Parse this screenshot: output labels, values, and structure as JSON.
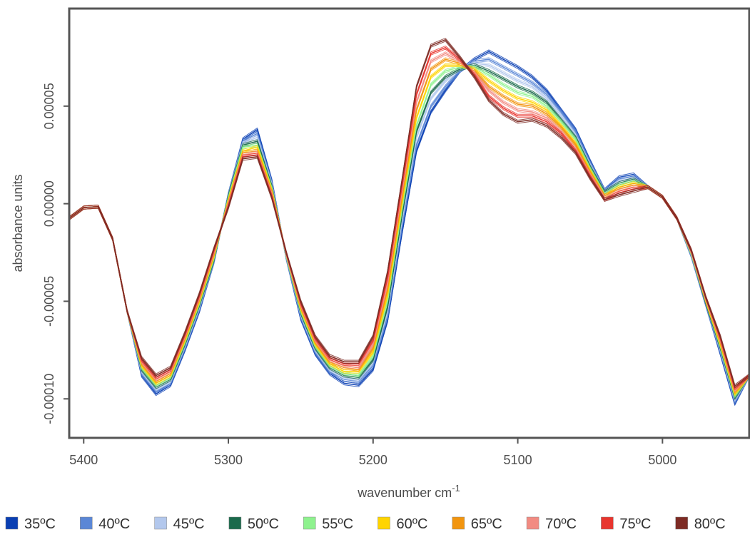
{
  "chart_data": {
    "type": "line",
    "xlabel": "wavenumber cm",
    "xlabel_sup": "-1",
    "ylabel": "absorbance units",
    "xlim": [
      5410,
      4940
    ],
    "ylim": [
      -0.00012,
      0.0001
    ],
    "x_reversed": true,
    "grid": false,
    "legend_position": "bottom",
    "x_ticks": [
      5400,
      5300,
      5200,
      5100,
      5000
    ],
    "x_tick_labels": [
      "5400",
      "5300",
      "5200",
      "5100",
      "5000"
    ],
    "y_ticks": [
      -0.0001,
      -5e-05,
      0,
      5e-05
    ],
    "y_tick_labels": [
      "-0.00010",
      "-0.00005",
      "0.00000",
      "0.00005"
    ],
    "x": [
      5410,
      5400,
      5390,
      5380,
      5370,
      5360,
      5350,
      5340,
      5330,
      5320,
      5310,
      5300,
      5290,
      5280,
      5270,
      5260,
      5250,
      5240,
      5230,
      5220,
      5210,
      5200,
      5190,
      5180,
      5170,
      5160,
      5150,
      5140,
      5130,
      5120,
      5110,
      5100,
      5090,
      5080,
      5070,
      5060,
      5050,
      5040,
      5030,
      5020,
      5010,
      5000,
      4990,
      4980,
      4970,
      4960,
      4950,
      4940
    ],
    "series": [
      {
        "name": "35ºC",
        "color": "#0a3fb3",
        "values": [
          -7.5e-06,
          -2e-06,
          -1.5e-06,
          -1.8e-05,
          -5.5e-05,
          -8.8e-05,
          -9.75e-05,
          -9.3e-05,
          -7.5e-05,
          -5.5e-05,
          -3e-05,
          5e-06,
          3.3e-05,
          3.8e-05,
          1.2e-05,
          -2.8e-05,
          -5.9e-05,
          -7.7e-05,
          -8.7e-05,
          -9.2e-05,
          -9.3e-05,
          -8.5e-05,
          -6e-05,
          -1.5e-05,
          2.7e-05,
          4.7e-05,
          5.8e-05,
          6.8e-05,
          7.4e-05,
          7.8e-05,
          7.4e-05,
          7e-05,
          6.5e-05,
          5.8e-05,
          4.8e-05,
          3.8e-05,
          2.2e-05,
          7e-06,
          1.35e-05,
          1.5e-05,
          8.5e-06,
          3.5e-06,
          -7.5e-06,
          -2.7e-05,
          -5.2e-05,
          -7.7e-05,
          -0.0001025,
          -8.8e-05
        ]
      },
      {
        "name": "40ºC",
        "color": "#5b87d6",
        "values": [
          -7.5e-06,
          -2e-06,
          -1.5e-06,
          -1.8e-05,
          -5.5e-05,
          -8.7e-05,
          -9.6e-05,
          -9.2e-05,
          -7.4e-05,
          -5.4e-05,
          -3e-05,
          5e-06,
          3.2e-05,
          3.6e-05,
          1.1e-05,
          -2.8e-05,
          -5.8e-05,
          -7.6e-05,
          -8.6e-05,
          -9e-05,
          -9.1e-05,
          -8.3e-05,
          -5.8e-05,
          -1.2e-05,
          3e-05,
          5e-05,
          6e-05,
          6.8e-05,
          7.3e-05,
          7.4e-05,
          7e-05,
          6.6e-05,
          6.2e-05,
          5.6e-05,
          4.7e-05,
          3.7e-05,
          2.1e-05,
          7e-06,
          1.25e-05,
          1.4e-05,
          8.5e-06,
          3.5e-06,
          -7.5e-06,
          -2.7e-05,
          -5.2e-05,
          -7.6e-05,
          -0.0001015,
          -8.8e-05
        ]
      },
      {
        "name": "45ºC",
        "color": "#b3c8ed",
        "values": [
          -7.5e-06,
          -2e-06,
          -1.5e-06,
          -1.8e-05,
          -5.5e-05,
          -8.6e-05,
          -9.5e-05,
          -9.1e-05,
          -7.3e-05,
          -5.3e-05,
          -2.9e-05,
          4e-06,
          3.1e-05,
          3.4e-05,
          1e-05,
          -2.7e-05,
          -5.7e-05,
          -7.5e-05,
          -8.5e-05,
          -8.9e-05,
          -9e-05,
          -8.1e-05,
          -5.5e-05,
          -9e-06,
          3.4e-05,
          5.4e-05,
          6.3e-05,
          6.9e-05,
          7.2e-05,
          7.1e-05,
          6.7e-05,
          6.3e-05,
          6e-05,
          5.4e-05,
          4.5e-05,
          3.5e-05,
          2e-05,
          6e-06,
          1.15e-05,
          1.3e-05,
          8.5e-06,
          3.5e-06,
          -7.5e-06,
          -2.6e-05,
          -5.1e-05,
          -7.5e-05,
          -0.0001005,
          -8.8e-05
        ]
      },
      {
        "name": "50ºC",
        "color": "#1b6a4c",
        "values": [
          -7.5e-06,
          -2e-06,
          -1.5e-06,
          -1.8e-05,
          -5.5e-05,
          -8.5e-05,
          -9.4e-05,
          -9e-05,
          -7.2e-05,
          -5.2e-05,
          -2.9e-05,
          4e-06,
          3e-05,
          3.2e-05,
          9e-06,
          -2.7e-05,
          -5.6e-05,
          -7.4e-05,
          -8.4e-05,
          -8.8e-05,
          -8.9e-05,
          -8e-05,
          -5.3e-05,
          -6e-06,
          3.7e-05,
          5.7e-05,
          6.5e-05,
          6.9e-05,
          7.1e-05,
          6.8e-05,
          6.4e-05,
          6e-05,
          5.7e-05,
          5.2e-05,
          4.3e-05,
          3.4e-05,
          1.9e-05,
          6e-06,
          1.05e-05,
          1.25e-05,
          8.5e-06,
          3.5e-06,
          -7.5e-06,
          -2.6e-05,
          -5.1e-05,
          -7.4e-05,
          -9.95e-05,
          -8.8e-05
        ]
      },
      {
        "name": "55ºC",
        "color": "#8ef28e",
        "values": [
          -7.5e-06,
          -2e-06,
          -1.5e-06,
          -1.8e-05,
          -5.5e-05,
          -8.4e-05,
          -9.3e-05,
          -8.9e-05,
          -7.1e-05,
          -5.1e-05,
          -2.8e-05,
          3e-06,
          2.9e-05,
          3e-05,
          8e-06,
          -2.7e-05,
          -5.5e-05,
          -7.3e-05,
          -8.3e-05,
          -8.7e-05,
          -8.8e-05,
          -7.8e-05,
          -5e-05,
          -3e-06,
          4e-05,
          6.1e-05,
          6.8e-05,
          7e-05,
          7e-05,
          6.6e-05,
          6.1e-05,
          5.7e-05,
          5.5e-05,
          5e-05,
          4.2e-05,
          3.3e-05,
          1.8e-05,
          5e-06,
          9.5e-06,
          1.15e-05,
          8.5e-06,
          3.5e-06,
          -7.5e-06,
          -2.6e-05,
          -5e-05,
          -7.3e-05,
          -9.85e-05,
          -8.8e-05
        ]
      },
      {
        "name": "60ºC",
        "color": "#ffd400",
        "values": [
          -7.5e-06,
          -2e-06,
          -1.5e-06,
          -1.8e-05,
          -5.5e-05,
          -8.3e-05,
          -9.2e-05,
          -8.8e-05,
          -7e-05,
          -5e-05,
          -2.7e-05,
          2e-06,
          2.7e-05,
          2.9e-05,
          7e-06,
          -2.6e-05,
          -5.4e-05,
          -7.2e-05,
          -8.2e-05,
          -8.6e-05,
          -8.6e-05,
          -7.6e-05,
          -4.7e-05,
          0,
          4.4e-05,
          6.5e-05,
          7.1e-05,
          7.1e-05,
          6.9e-05,
          6.3e-05,
          5.8e-05,
          5.4e-05,
          5.2e-05,
          4.8e-05,
          4e-05,
          3.1e-05,
          1.7e-05,
          4e-06,
          8.5e-06,
          1.05e-05,
          8.5e-06,
          3.5e-06,
          -7.5e-06,
          -2.5e-05,
          -5e-05,
          -7.2e-05,
          -9.75e-05,
          -8.8e-05
        ]
      },
      {
        "name": "65ºC",
        "color": "#f2950f",
        "values": [
          -7.5e-06,
          -2e-06,
          -1.5e-06,
          -1.8e-05,
          -5.5e-05,
          -8.2e-05,
          -9.1e-05,
          -8.7e-05,
          -6.9e-05,
          -4.9e-05,
          -2.6e-05,
          1e-06,
          2.6e-05,
          2.7e-05,
          6e-06,
          -2.6e-05,
          -5.3e-05,
          -7.1e-05,
          -8.1e-05,
          -8.4e-05,
          -8.5e-05,
          -7.4e-05,
          -4.4e-05,
          3e-06,
          4.8e-05,
          6.9e-05,
          7.4e-05,
          7.2e-05,
          6.8e-05,
          6e-05,
          5.5e-05,
          5.1e-05,
          5e-05,
          4.6e-05,
          3.9e-05,
          3e-05,
          1.6e-05,
          4e-06,
          7.5e-06,
          9.5e-06,
          8.5e-06,
          3.5e-06,
          -7.5e-06,
          -2.5e-05,
          -4.9e-05,
          -7.1e-05,
          -9.65e-05,
          -8.8e-05
        ]
      },
      {
        "name": "70ºC",
        "color": "#f28b82",
        "values": [
          -7.5e-06,
          -2e-06,
          -1.5e-06,
          -1.8e-05,
          -5.5e-05,
          -8.1e-05,
          -9e-05,
          -8.6e-05,
          -6.8e-05,
          -4.8e-05,
          -2.5e-05,
          0,
          2.5e-05,
          2.6e-05,
          5e-06,
          -2.6e-05,
          -5.2e-05,
          -7e-05,
          -8e-05,
          -8.3e-05,
          -8.4e-05,
          -7.2e-05,
          -4.1e-05,
          6e-06,
          5.2e-05,
          7.3e-05,
          7.7e-05,
          7.3e-05,
          6.7e-05,
          5.8e-05,
          5.2e-05,
          4.8e-05,
          4.7e-05,
          4.4e-05,
          3.7e-05,
          2.8e-05,
          1.5e-05,
          3e-06,
          6.5e-06,
          8.5e-06,
          8.5e-06,
          3.5e-06,
          -7.5e-06,
          -2.5e-05,
          -4.9e-05,
          -7e-05,
          -9.55e-05,
          -8.8e-05
        ]
      },
      {
        "name": "75ºC",
        "color": "#e8352e",
        "values": [
          -7.5e-06,
          -2e-06,
          -1.5e-06,
          -1.8e-05,
          -5.5e-05,
          -8e-05,
          -8.9e-05,
          -8.5e-05,
          -6.7e-05,
          -4.7e-05,
          -2.4e-05,
          -1e-06,
          2.4e-05,
          2.5e-05,
          4e-06,
          -2.5e-05,
          -5.1e-05,
          -6.9e-05,
          -7.9e-05,
          -8.2e-05,
          -8.2e-05,
          -7e-05,
          -3.8e-05,
          9e-06,
          5.6e-05,
          7.7e-05,
          8e-05,
          7.4e-05,
          6.6e-05,
          5.5e-05,
          4.9e-05,
          4.5e-05,
          4.5e-05,
          4.2e-05,
          3.6e-05,
          2.7e-05,
          1.4e-05,
          2e-06,
          5.5e-06,
          7.5e-06,
          8.5e-06,
          3.5e-06,
          -7.5e-06,
          -2.4e-05,
          -4.8e-05,
          -6.9e-05,
          -9.45e-05,
          -8.8e-05
        ]
      },
      {
        "name": "80ºC",
        "color": "#7d2b24",
        "values": [
          -7.5e-06,
          -2e-06,
          -1.5e-06,
          -1.8e-05,
          -5.5e-05,
          -7.9e-05,
          -8.8e-05,
          -8.4e-05,
          -6.6e-05,
          -4.6e-05,
          -2.3e-05,
          -2e-06,
          2.3e-05,
          2.4e-05,
          3e-06,
          -2.5e-05,
          -5e-05,
          -6.8e-05,
          -7.8e-05,
          -8.1e-05,
          -8.1e-05,
          -6.8e-05,
          -3.5e-05,
          1.2e-05,
          6e-05,
          8.1e-05,
          8.4e-05,
          7.5e-05,
          6.5e-05,
          5.3e-05,
          4.6e-05,
          4.2e-05,
          4.3e-05,
          4e-05,
          3.4e-05,
          2.6e-05,
          1.3e-05,
          2e-06,
          4.5e-06,
          6.5e-06,
          8.5e-06,
          3.5e-06,
          -7.5e-06,
          -2.4e-05,
          -4.8e-05,
          -6.8e-05,
          -9.35e-05,
          -8.8e-05
        ]
      }
    ]
  }
}
